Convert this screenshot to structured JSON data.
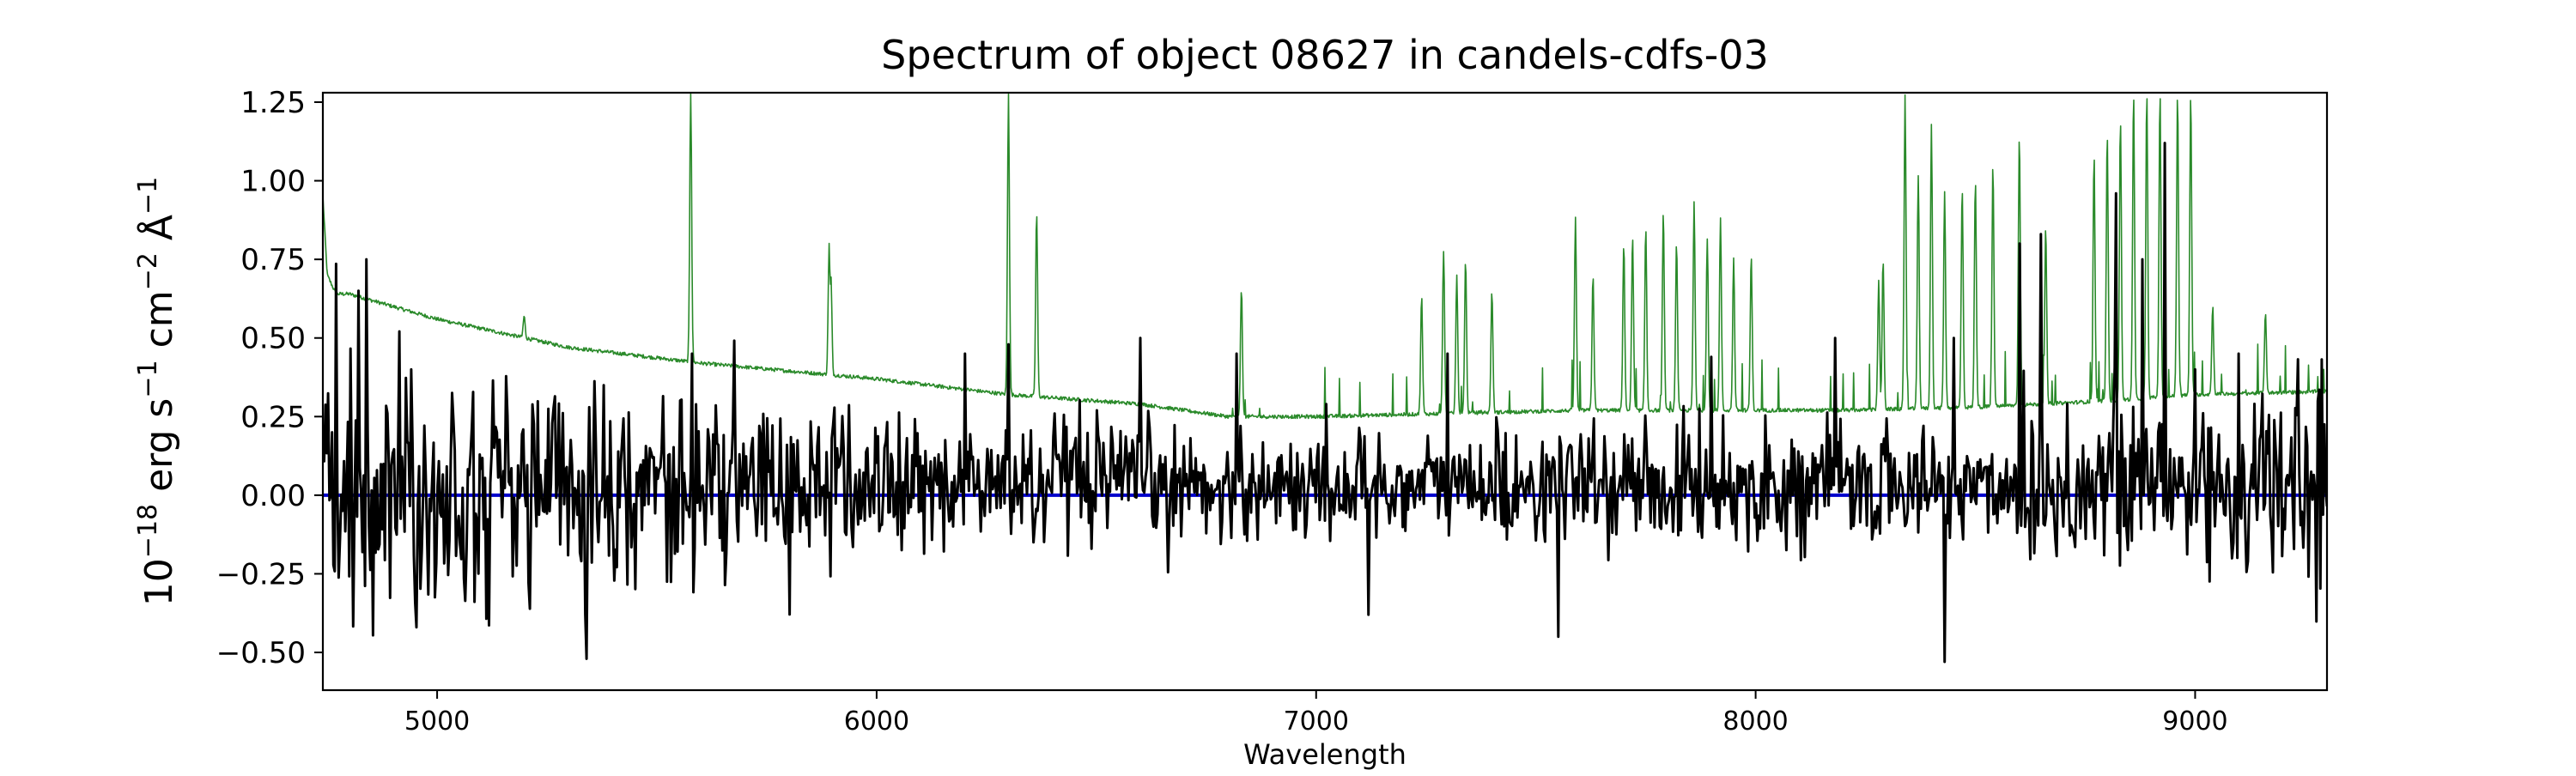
{
  "chart_data": {
    "type": "line",
    "title": "Spectrum of object 08627 in candels-cdfs-03",
    "xlabel": "Wavelength",
    "ylabel_base": "10",
    "ylabel_exp": "−18",
    "ylabel_unit1": " erg s",
    "ylabel_exp1": "−1",
    "ylabel_unit2": " cm",
    "ylabel_exp2": "−2",
    "ylabel_unit3": " Å",
    "ylabel_exp3": "−1",
    "xlim": [
      4740,
      9300
    ],
    "ylim": [
      -0.62,
      1.28
    ],
    "xticks": [
      5000,
      6000,
      7000,
      8000,
      9000
    ],
    "xtick_labels": [
      "5000",
      "6000",
      "7000",
      "8000",
      "9000"
    ],
    "yticks": [
      -0.5,
      -0.25,
      0.0,
      0.25,
      0.5,
      0.75,
      1.0,
      1.25
    ],
    "ytick_labels": [
      "−0.50",
      "−0.25",
      "0.00",
      "0.25",
      "0.50",
      "0.75",
      "1.00",
      "1.25"
    ],
    "grid": false,
    "colors": {
      "flux": "#000000",
      "error": "#2a8a2a",
      "zero": "#0000cc"
    },
    "series": [
      {
        "role": "flux",
        "style": "noisy-spectrum",
        "x_range": [
          4740,
          9300
        ],
        "anchors": {
          "x": [
            4760,
            4820,
            4840,
            4940,
            5340,
            5380,
            5580,
            6200,
            6300,
            6600,
            6820,
            7120,
            7300,
            7550,
            7900,
            8180,
            8430,
            8450,
            8600,
            8650,
            8820,
            8880,
            8930,
            9000,
            9100,
            9280
          ],
          "y": [
            0.2,
            0.65,
            0.75,
            0.4,
            -0.52,
            0.35,
            0.45,
            0.45,
            0.48,
            0.5,
            0.45,
            -0.38,
            0.45,
            -0.45,
            0.44,
            0.5,
            -0.53,
            0.5,
            0.8,
            0.83,
            0.96,
            0.75,
            1.12,
            0.4,
            0.45,
            0.3
          ]
        }
      },
      {
        "role": "error",
        "style": "continuum-with-sky-lines",
        "continuum": {
          "x": [
            4740,
            4750,
            4770,
            4800,
            5000,
            5300,
            5600,
            6000,
            6300,
            6600,
            6800,
            7000,
            7300,
            7600,
            7900,
            8200,
            8500,
            8800,
            9000,
            9300
          ],
          "y": [
            0.95,
            0.7,
            0.64,
            0.64,
            0.56,
            0.47,
            0.42,
            0.37,
            0.32,
            0.29,
            0.25,
            0.25,
            0.26,
            0.27,
            0.27,
            0.27,
            0.28,
            0.3,
            0.32,
            0.33
          ]
        },
        "peaks": {
          "x": [
            5198,
            5577,
            5577,
            5892,
            5896,
            6300,
            6364,
            6830,
            7240,
            7290,
            7320,
            7340,
            7400,
            7590,
            7630,
            7700,
            7720,
            7750,
            7790,
            7820,
            7860,
            7890,
            7920,
            7950,
            7990,
            8280,
            8290,
            8340,
            8370,
            8400,
            8430,
            8470,
            8500,
            8540,
            8600,
            8660,
            8770,
            8800,
            8830,
            8860,
            8890,
            8920,
            8960,
            8990,
            9040,
            9160
          ],
          "y": [
            0.57,
            1.28,
            1.28,
            0.8,
            0.7,
            1.28,
            0.9,
            0.66,
            0.63,
            0.78,
            0.7,
            0.75,
            0.65,
            0.88,
            0.7,
            0.8,
            0.82,
            0.85,
            0.9,
            0.8,
            0.93,
            0.82,
            0.88,
            0.75,
            0.76,
            0.68,
            0.75,
            1.27,
            1.02,
            1.18,
            0.96,
            0.98,
            1.0,
            1.05,
            1.15,
            0.85,
            1.08,
            1.15,
            1.2,
            1.28,
            1.28,
            1.28,
            1.28,
            1.28,
            0.6,
            0.58
          ]
        }
      },
      {
        "role": "zero",
        "x": [
          4740,
          9300
        ],
        "y": [
          0,
          0
        ]
      }
    ]
  }
}
